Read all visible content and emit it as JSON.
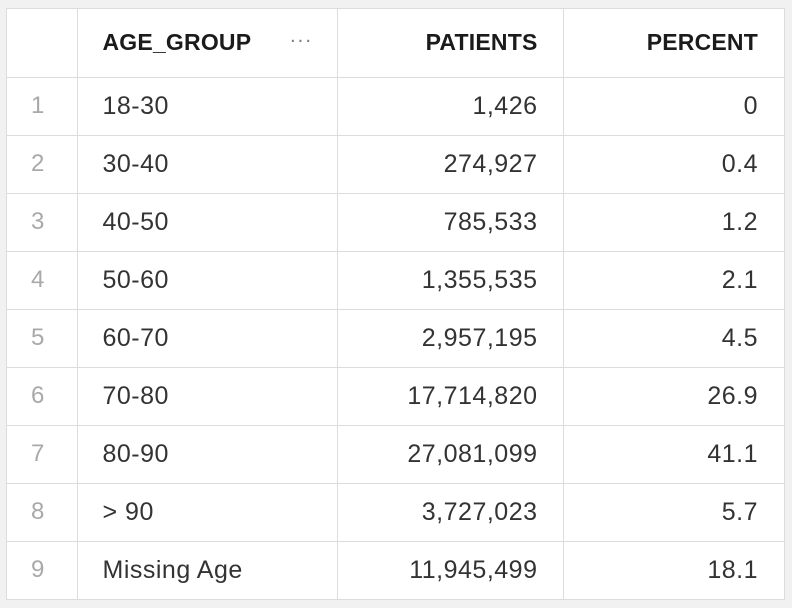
{
  "columns": {
    "age_group": "AGE_GROUP",
    "patients": "PATIENTS",
    "percent": "PERCENT",
    "menu_glyph": "···"
  },
  "rows": [
    {
      "index": "1",
      "age_group": "18-30",
      "patients": "1,426",
      "percent": "0"
    },
    {
      "index": "2",
      "age_group": "30-40",
      "patients": "274,927",
      "percent": "0.4"
    },
    {
      "index": "3",
      "age_group": "40-50",
      "patients": "785,533",
      "percent": "1.2"
    },
    {
      "index": "4",
      "age_group": "50-60",
      "patients": "1,355,535",
      "percent": "2.1"
    },
    {
      "index": "5",
      "age_group": "60-70",
      "patients": "2,957,195",
      "percent": "4.5"
    },
    {
      "index": "6",
      "age_group": "70-80",
      "patients": "17,714,820",
      "percent": "26.9"
    },
    {
      "index": "7",
      "age_group": "80-90",
      "patients": "27,081,099",
      "percent": "41.1"
    },
    {
      "index": "8",
      "age_group": "> 90",
      "patients": "3,727,023",
      "percent": "5.7"
    },
    {
      "index": "9",
      "age_group": "Missing Age",
      "patients": "11,945,499",
      "percent": "18.1"
    }
  ]
}
